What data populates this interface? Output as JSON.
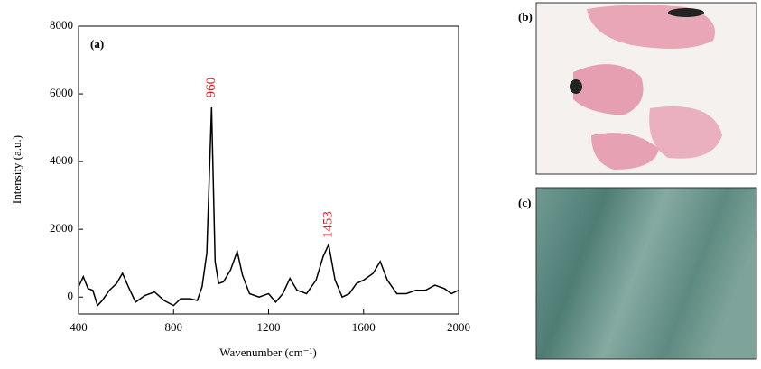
{
  "chart_data": {
    "type": "line",
    "title": "(a)",
    "xlabel": "Wavenumber (cm⁻¹)",
    "ylabel": "Intensity (a.u.)",
    "x": [
      400,
      420,
      440,
      460,
      480,
      500,
      530,
      560,
      585,
      610,
      640,
      680,
      720,
      760,
      800,
      830,
      870,
      900,
      920,
      940,
      960,
      975,
      990,
      1010,
      1040,
      1068,
      1090,
      1120,
      1160,
      1200,
      1230,
      1260,
      1290,
      1320,
      1360,
      1400,
      1430,
      1453,
      1480,
      1510,
      1540,
      1570,
      1600,
      1640,
      1670,
      1700,
      1740,
      1780,
      1820,
      1860,
      1900,
      1940,
      1970,
      2000
    ],
    "values": [
      300,
      600,
      250,
      200,
      -250,
      -100,
      200,
      400,
      700,
      300,
      -150,
      50,
      150,
      -100,
      -250,
      -50,
      -50,
      -100,
      300,
      1300,
      5600,
      1050,
      400,
      450,
      800,
      1350,
      650,
      100,
      0,
      100,
      -150,
      100,
      550,
      200,
      100,
      500,
      1200,
      1550,
      500,
      0,
      100,
      400,
      500,
      700,
      1050,
      500,
      100,
      100,
      200,
      200,
      350,
      250,
      100,
      200
    ],
    "color": "#000000",
    "xlim": [
      400,
      2000
    ],
    "xticks": [
      400,
      800,
      1200,
      1600,
      2000
    ],
    "ylim": [
      -500,
      8000
    ],
    "yticks": [
      0,
      2000,
      4000,
      6000,
      8000
    ],
    "annotations": [
      {
        "text": "960",
        "x": 960
      },
      {
        "text": "1453",
        "x": 1453
      }
    ],
    "annotation_color": "#e8141b"
  },
  "panels": [
    {
      "label": "(b)"
    },
    {
      "label": "(c)"
    }
  ]
}
